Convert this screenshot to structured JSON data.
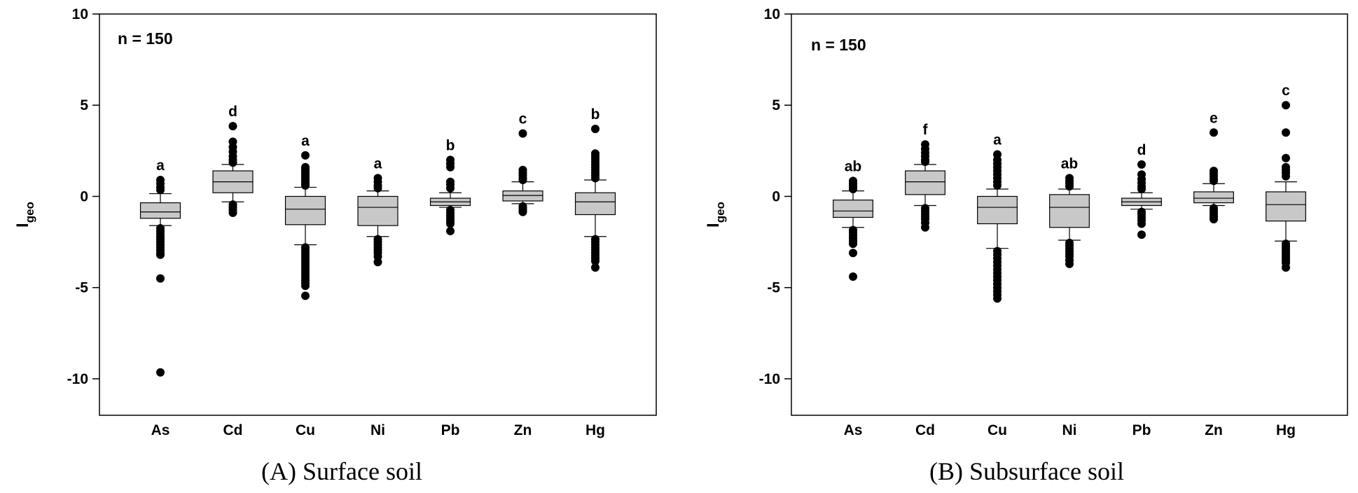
{
  "chart_data": [
    {
      "type": "box",
      "caption": "(A) Surface soil",
      "ylabel": "I",
      "ylabel_sub": "geo",
      "ylim": [
        -12,
        10
      ],
      "yticks": [
        10,
        5,
        0,
        -5,
        -10
      ],
      "annotation": "n = 150",
      "categories": [
        "As",
        "Cd",
        "Cu",
        "Ni",
        "Pb",
        "Zn",
        "Hg"
      ],
      "boxes": [
        {
          "category": "As",
          "q1": -1.2,
          "median": -0.85,
          "q3": -0.35,
          "whisker_low": -1.6,
          "whisker_high": 0.15,
          "group": "a",
          "outliers": [
            0.9,
            0.7,
            0.5,
            0.35,
            -1.75,
            -1.9,
            -2.05,
            -2.2,
            -2.35,
            -2.5,
            -2.65,
            -2.8,
            -2.95,
            -3.1,
            -3.2,
            -4.5,
            -9.65
          ]
        },
        {
          "category": "Cd",
          "q1": 0.2,
          "median": 0.8,
          "q3": 1.4,
          "whisker_low": -0.3,
          "whisker_high": 1.75,
          "group": "d",
          "outliers": [
            3.85,
            3.0,
            2.7,
            2.45,
            2.2,
            2.0,
            1.85,
            -0.45,
            -0.6,
            -0.75,
            -0.9
          ]
        },
        {
          "category": "Cu",
          "q1": -1.55,
          "median": -0.7,
          "q3": 0.0,
          "whisker_low": -2.65,
          "whisker_high": 0.5,
          "group": "a",
          "outliers": [
            2.25,
            1.6,
            1.5,
            1.4,
            1.3,
            1.2,
            1.1,
            1.0,
            0.9,
            0.8,
            0.7,
            0.6,
            -2.8,
            -2.95,
            -3.1,
            -3.25,
            -3.4,
            -3.55,
            -3.7,
            -3.85,
            -4.0,
            -4.15,
            -4.3,
            -4.45,
            -4.6,
            -4.75,
            -4.9,
            -5.45
          ]
        },
        {
          "category": "Ni",
          "q1": -1.6,
          "median": -0.6,
          "q3": 0.0,
          "whisker_low": -2.2,
          "whisker_high": 0.3,
          "group": "a",
          "outliers": [
            1.0,
            0.8,
            0.6,
            0.45,
            -2.35,
            -2.5,
            -2.65,
            -2.8,
            -2.95,
            -3.1,
            -3.3,
            -3.6
          ]
        },
        {
          "category": "Pb",
          "q1": -0.5,
          "median": -0.3,
          "q3": -0.1,
          "whisker_low": -0.6,
          "whisker_high": 0.2,
          "group": "b",
          "outliers": [
            2.0,
            1.8,
            1.6,
            0.8,
            0.65,
            0.45,
            -0.75,
            -0.9,
            -1.05,
            -1.2,
            -1.35,
            -1.5,
            -1.9
          ]
        },
        {
          "category": "Zn",
          "q1": -0.25,
          "median": 0.05,
          "q3": 0.3,
          "whisker_low": -0.4,
          "whisker_high": 0.8,
          "group": "c",
          "outliers": [
            3.45,
            1.45,
            1.3,
            1.15,
            1.0,
            0.9,
            -0.55,
            -0.65,
            -0.75,
            -0.85
          ]
        },
        {
          "category": "Hg",
          "q1": -1.0,
          "median": -0.3,
          "q3": 0.2,
          "whisker_low": -2.2,
          "whisker_high": 0.9,
          "group": "b",
          "outliers": [
            3.7,
            2.35,
            2.2,
            2.05,
            1.9,
            1.75,
            1.6,
            1.45,
            1.3,
            1.15,
            1.0,
            -2.35,
            -2.5,
            -2.65,
            -2.8,
            -2.95,
            -3.1,
            -3.25,
            -3.4,
            -3.55,
            -3.9
          ]
        }
      ]
    },
    {
      "type": "box",
      "caption": "(B) Subsurface soil",
      "ylabel": "I",
      "ylabel_sub": "geo",
      "ylim": [
        -12,
        10
      ],
      "yticks": [
        10,
        5,
        0,
        -5,
        -10
      ],
      "annotation": "n = 150",
      "categories": [
        "As",
        "Cd",
        "Cu",
        "Ni",
        "Pb",
        "Zn",
        "Hg"
      ],
      "boxes": [
        {
          "category": "As",
          "q1": -1.15,
          "median": -0.8,
          "q3": -0.2,
          "whisker_low": -1.7,
          "whisker_high": 0.3,
          "group": "ab",
          "outliers": [
            0.85,
            0.7,
            0.55,
            0.4,
            -1.85,
            -2.0,
            -2.15,
            -2.3,
            -2.45,
            -2.6,
            -3.1,
            -4.4
          ]
        },
        {
          "category": "Cd",
          "q1": 0.1,
          "median": 0.8,
          "q3": 1.4,
          "whisker_low": -0.5,
          "whisker_high": 1.75,
          "group": "f",
          "outliers": [
            2.85,
            2.6,
            2.4,
            2.2,
            2.0,
            1.9,
            -0.65,
            -0.8,
            -0.95,
            -1.1,
            -1.25,
            -1.45,
            -1.7
          ]
        },
        {
          "category": "Cu",
          "q1": -1.5,
          "median": -0.6,
          "q3": 0.0,
          "whisker_low": -2.85,
          "whisker_high": 0.4,
          "group": "a",
          "outliers": [
            2.3,
            2.0,
            1.8,
            1.6,
            1.4,
            1.2,
            1.0,
            0.8,
            0.6,
            -3.0,
            -3.2,
            -3.4,
            -3.6,
            -3.8,
            -4.0,
            -4.2,
            -4.4,
            -4.6,
            -4.8,
            -5.0,
            -5.2,
            -5.4,
            -5.6
          ]
        },
        {
          "category": "Ni",
          "q1": -1.7,
          "median": -0.6,
          "q3": 0.1,
          "whisker_low": -2.4,
          "whisker_high": 0.4,
          "group": "ab",
          "outliers": [
            1.0,
            0.85,
            0.7,
            0.55,
            -2.55,
            -2.7,
            -2.85,
            -3.0,
            -3.15,
            -3.3,
            -3.5,
            -3.7
          ]
        },
        {
          "category": "Pb",
          "q1": -0.5,
          "median": -0.3,
          "q3": -0.1,
          "whisker_low": -0.7,
          "whisker_high": 0.2,
          "group": "d",
          "outliers": [
            1.75,
            1.2,
            0.95,
            0.75,
            0.55,
            0.4,
            -0.85,
            -1.0,
            -1.15,
            -1.3,
            -1.5,
            -2.1
          ]
        },
        {
          "category": "Zn",
          "q1": -0.35,
          "median": -0.1,
          "q3": 0.25,
          "whisker_low": -0.5,
          "whisker_high": 0.7,
          "group": "e",
          "outliers": [
            3.5,
            1.4,
            1.25,
            1.1,
            0.95,
            0.85,
            -0.65,
            -0.8,
            -0.95,
            -1.1,
            -1.25
          ]
        },
        {
          "category": "Hg",
          "q1": -1.35,
          "median": -0.45,
          "q3": 0.25,
          "whisker_low": -2.45,
          "whisker_high": 0.8,
          "group": "c",
          "outliers": [
            5.0,
            3.5,
            2.1,
            1.6,
            1.45,
            1.3,
            1.1,
            -2.6,
            -2.75,
            -2.9,
            -3.05,
            -3.2,
            -3.35,
            -3.5,
            -3.65,
            -3.9
          ]
        }
      ]
    }
  ]
}
